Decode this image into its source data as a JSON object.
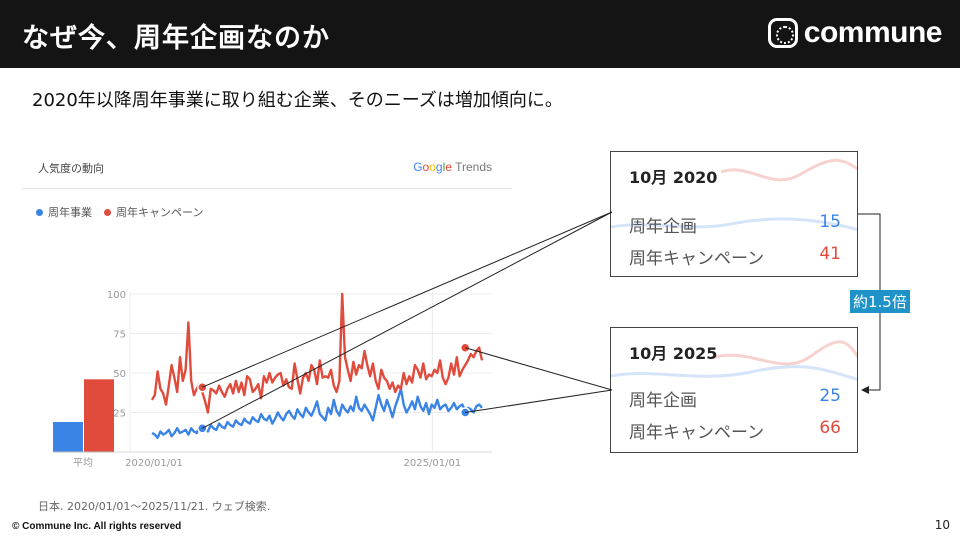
{
  "header": {
    "title": "なぜ今、周年企画なのか",
    "logo_text": "commune"
  },
  "subtitle": "2020年以降周年事業に取り組む企業、そのニーズは増加傾向に。",
  "panel": {
    "title": "人気度の動向",
    "brand": [
      "G",
      "o",
      "o",
      "g",
      "l",
      "e",
      " Trends"
    ],
    "footer": "日本. 2020/01/01〜2025/11/21. ウェブ検索."
  },
  "colors": {
    "blue": "#3a84e6",
    "red": "#e04b3c",
    "badge": "#1f93c8"
  },
  "chart_data": {
    "type": "line",
    "x_start": "2020/01/01",
    "x_end": "2025/11/21",
    "x_ticks": [
      "2020/01/01",
      "2025/01/01"
    ],
    "y_ticks": [
      25,
      50,
      75,
      100
    ],
    "ylim": [
      0,
      100
    ],
    "grid": true,
    "legend_position": "top-left",
    "series": [
      {
        "name": "周年事業",
        "color": "#3a84e6",
        "average": 19,
        "values": [
          12,
          11,
          9,
          13,
          11,
          12,
          14,
          10,
          12,
          15,
          12,
          13,
          14,
          11,
          15,
          13,
          12,
          16,
          14,
          15,
          13,
          17,
          15,
          14,
          18,
          16,
          15,
          19,
          17,
          16,
          20,
          18,
          17,
          21,
          19,
          18,
          22,
          20,
          19,
          24,
          21,
          20,
          23,
          18,
          21,
          25,
          22,
          20,
          24,
          26,
          23,
          21,
          27,
          24,
          22,
          28,
          25,
          23,
          27,
          32,
          24,
          22,
          20,
          28,
          24,
          33,
          26,
          23,
          30,
          27,
          25,
          29,
          26,
          35,
          28,
          26,
          30,
          27,
          24,
          20,
          28,
          36,
          30,
          26,
          33,
          28,
          22,
          29,
          34,
          40,
          30,
          25,
          28,
          32,
          27,
          35,
          29,
          26,
          31,
          24,
          30,
          28,
          33,
          27,
          29,
          30,
          26,
          28,
          31,
          27,
          29,
          30,
          26,
          28,
          27,
          25,
          29,
          30,
          28
        ]
      },
      {
        "name": "周年キャンペーン",
        "color": "#e04b3c",
        "average": 46,
        "values": [
          33,
          36,
          51,
          40,
          37,
          30,
          42,
          55,
          47,
          38,
          60,
          45,
          52,
          82,
          45,
          36,
          40,
          43,
          38,
          32,
          25,
          40,
          39,
          37,
          42,
          38,
          35,
          40,
          43,
          37,
          45,
          38,
          44,
          36,
          48,
          46,
          38,
          40,
          43,
          34,
          48,
          44,
          50,
          44,
          47,
          49,
          50,
          42,
          46,
          41,
          40,
          56,
          46,
          37,
          47,
          50,
          45,
          55,
          52,
          43,
          58,
          47,
          48,
          47,
          52,
          42,
          38,
          45,
          100,
          60,
          52,
          45,
          57,
          49,
          55,
          53,
          64,
          55,
          48,
          56,
          45,
          40,
          52,
          47,
          45,
          40,
          44,
          38,
          42,
          40,
          50,
          43,
          48,
          44,
          55,
          52,
          47,
          56,
          46,
          49,
          48,
          52,
          50,
          58,
          47,
          43,
          47,
          56,
          49,
          60,
          48,
          52,
          55,
          58,
          62,
          60,
          64,
          66,
          58
        ]
      }
    ]
  },
  "callouts": [
    {
      "id": "2020",
      "title": "10月 2020",
      "rows": [
        {
          "label": "周年企画",
          "value": "15"
        },
        {
          "label": "周年キャンペーン",
          "value": "41"
        }
      ]
    },
    {
      "id": "2025",
      "title": "10月 2025",
      "rows": [
        {
          "label": "周年企画",
          "value": "25"
        },
        {
          "label": "周年キャンペーン",
          "value": "66"
        }
      ]
    }
  ],
  "annotation": {
    "ratio_label": "約1.5倍"
  },
  "footer": {
    "copyright": "© Commune Inc. All rights reserved",
    "page_number": "10"
  }
}
